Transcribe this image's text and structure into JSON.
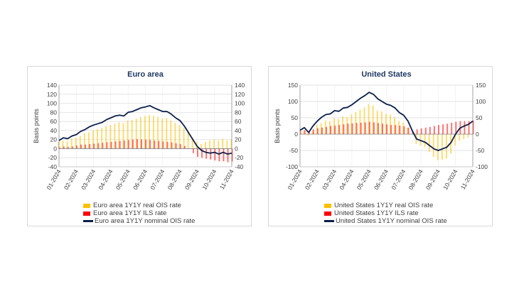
{
  "colors": {
    "real": "#FFC000",
    "ils": "#FF0000",
    "nominal": "#0B1F4B"
  },
  "chart_data": [
    {
      "type": "bar",
      "title": "Euro area",
      "ylabel": "Basis points",
      "ylim": [
        -40,
        140
      ],
      "yticks": [
        140,
        120,
        100,
        80,
        60,
        40,
        20,
        0,
        -20,
        -40
      ],
      "ytick_labels": [
        "140",
        "120",
        "100",
        "80",
        "60",
        "40",
        "20",
        "0",
        "-20",
        "-40"
      ],
      "y2ticks": [
        140,
        120,
        100,
        80,
        60,
        40,
        20,
        0,
        -20,
        -40
      ],
      "y2tick_labels": [
        "140",
        "120",
        "100",
        "80",
        "60",
        "40",
        "20",
        "0",
        "-20",
        "-40"
      ],
      "x_ticks": [
        "01-2024",
        "02-2024",
        "03-2024",
        "04-2024",
        "05-2024",
        "06-2024",
        "07-2024",
        "08-2024",
        "09-2024",
        "10-2024",
        "11-2024"
      ],
      "grid": true,
      "legend": [
        "Euro area 1Y1Y real OIS rate",
        "Euro area 1Y1Y ILS rate",
        "Euro area 1Y1Y nominal OIS rate"
      ],
      "x_months": [
        0,
        0.25,
        0.5,
        0.75,
        1.0,
        1.25,
        1.5,
        1.75,
        2.0,
        2.25,
        2.5,
        2.75,
        3.0,
        3.25,
        3.5,
        3.75,
        4.0,
        4.25,
        4.5,
        4.75,
        5.0,
        5.25,
        5.5,
        5.75,
        6.0,
        6.25,
        6.5,
        6.75,
        7.0,
        7.25,
        7.5,
        7.75,
        8.0,
        8.25,
        8.5,
        8.75,
        9.0,
        9.25,
        9.5,
        9.75,
        10.0
      ],
      "series": [
        {
          "name": "Euro area 1Y1Y real OIS rate",
          "kind": "bar",
          "color": "#FFC000",
          "values": [
            15,
            18,
            16,
            22,
            24,
            28,
            34,
            36,
            40,
            43,
            46,
            50,
            52,
            55,
            58,
            56,
            62,
            63,
            66,
            70,
            72,
            74,
            72,
            70,
            66,
            68,
            62,
            57,
            52,
            45,
            35,
            25,
            15,
            10,
            15,
            18,
            20,
            18,
            22,
            18,
            20
          ]
        },
        {
          "name": "Euro area 1Y1Y ILS rate",
          "kind": "bar",
          "color": "#FF0000",
          "values": [
            3,
            5,
            4,
            5,
            7,
            9,
            9,
            10,
            11,
            12,
            13,
            14,
            15,
            16,
            17,
            18,
            19,
            20,
            21,
            20,
            20,
            19,
            18,
            17,
            16,
            15,
            14,
            12,
            10,
            6,
            0,
            -10,
            -18,
            -20,
            -22,
            -24,
            -26,
            -28,
            -28,
            -30,
            -28
          ]
        },
        {
          "name": "Euro area 1Y1Y nominal OIS rate",
          "kind": "line",
          "color": "#0B1F4B",
          "values": [
            18,
            24,
            22,
            28,
            31,
            38,
            42,
            48,
            52,
            55,
            58,
            64,
            68,
            72,
            74,
            72,
            80,
            82,
            86,
            90,
            92,
            95,
            90,
            86,
            82,
            82,
            76,
            68,
            62,
            50,
            35,
            20,
            5,
            -4,
            -8,
            -10,
            -8,
            -12,
            -8,
            -12,
            -10
          ]
        }
      ]
    },
    {
      "type": "bar",
      "title": "United States",
      "ylabel": "Basis points",
      "ylim": [
        -100,
        150
      ],
      "yticks": [
        150,
        100,
        50,
        0,
        -50,
        -100
      ],
      "ytick_labels": [
        "150",
        "100",
        "50",
        "0",
        "-50",
        "-100"
      ],
      "y2ticks": [
        150,
        100,
        50,
        0,
        -50,
        -100
      ],
      "y2tick_labels": [
        "150",
        "100",
        "50",
        "0",
        "-50",
        "-100"
      ],
      "x_ticks": [
        "01-2024",
        "02-2024",
        "03-2024",
        "04-2024",
        "05-2024",
        "06-2024",
        "07-2024",
        "08-2024",
        "09-2024",
        "10-2024",
        "11-2024"
      ],
      "grid": true,
      "legend": [
        "United States 1Y1Y real OIS rate",
        "United States 1Y1Y ILS rate",
        "United States 1Y1Y nominal OIS rate"
      ],
      "x_months": [
        0,
        0.25,
        0.5,
        0.75,
        1.0,
        1.25,
        1.5,
        1.75,
        2.0,
        2.25,
        2.5,
        2.75,
        3.0,
        3.25,
        3.5,
        3.75,
        4.0,
        4.25,
        4.5,
        4.75,
        5.0,
        5.25,
        5.5,
        5.75,
        6.0,
        6.25,
        6.5,
        6.75,
        7.0,
        7.25,
        7.5,
        7.75,
        8.0,
        8.25,
        8.5,
        8.75,
        9.0,
        9.25,
        9.5,
        9.75,
        10.0
      ],
      "series": [
        {
          "name": "United States 1Y1Y real OIS rate",
          "kind": "bar",
          "color": "#FFC000",
          "values": [
            0,
            12,
            -5,
            10,
            28,
            34,
            42,
            40,
            48,
            46,
            55,
            52,
            60,
            68,
            75,
            82,
            92,
            88,
            72,
            70,
            62,
            60,
            52,
            40,
            35,
            20,
            0,
            -30,
            -35,
            -40,
            -55,
            -70,
            -80,
            -78,
            -75,
            -60,
            -35,
            -20,
            -15,
            -10,
            0
          ]
        },
        {
          "name": "United States 1Y1Y ILS rate",
          "kind": "bar",
          "color": "#FF0000",
          "values": [
            10,
            12,
            10,
            15,
            18,
            20,
            22,
            25,
            26,
            28,
            30,
            32,
            33,
            34,
            35,
            36,
            38,
            36,
            34,
            32,
            30,
            28,
            28,
            26,
            24,
            20,
            10,
            15,
            18,
            20,
            22,
            25,
            28,
            30,
            32,
            35,
            38,
            40,
            40,
            40,
            42
          ]
        },
        {
          "name": "United States 1Y1Y nominal OIS rate",
          "kind": "line",
          "color": "#0B1F4B",
          "values": [
            12,
            20,
            5,
            25,
            40,
            52,
            60,
            62,
            72,
            70,
            80,
            82,
            90,
            100,
            110,
            118,
            128,
            122,
            108,
            100,
            92,
            88,
            80,
            66,
            58,
            40,
            10,
            -15,
            -20,
            -25,
            -35,
            -45,
            -50,
            -45,
            -40,
            -25,
            0,
            18,
            25,
            30,
            40
          ]
        }
      ]
    }
  ]
}
